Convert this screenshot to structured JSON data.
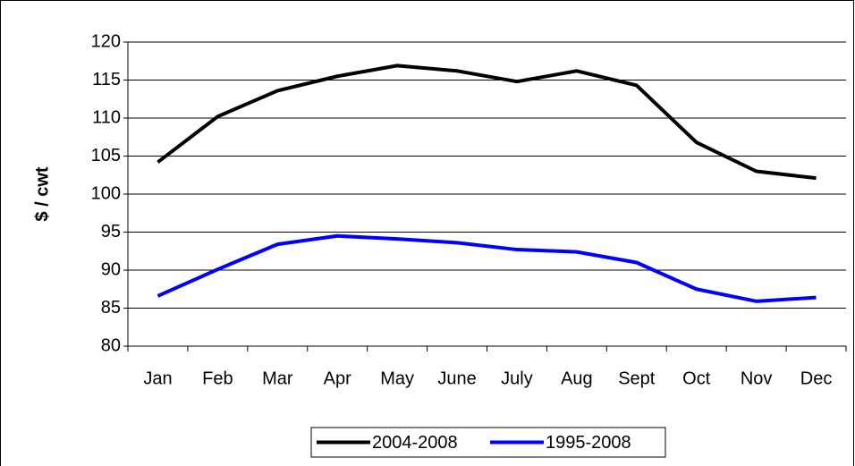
{
  "chart_data": {
    "type": "line",
    "y_label": "$ / cwt",
    "categories": [
      "Jan",
      "Feb",
      "Mar",
      "Apr",
      "May",
      "June",
      "July",
      "Aug",
      "Sept",
      "Oct",
      "Nov",
      "Dec"
    ],
    "series": [
      {
        "name": "2004-2008",
        "color": "#000000",
        "values": [
          104.2,
          110.2,
          113.6,
          115.5,
          116.9,
          116.2,
          114.8,
          116.2,
          114.3,
          106.8,
          103.0,
          102.1
        ]
      },
      {
        "name": "1995-2008",
        "color": "#0000ff",
        "values": [
          86.6,
          90.1,
          93.4,
          94.5,
          94.1,
          93.6,
          92.7,
          92.4,
          91.0,
          87.5,
          85.9,
          86.4
        ]
      }
    ],
    "ylim": [
      80,
      120
    ],
    "yticks": [
      80,
      85,
      90,
      95,
      100,
      105,
      110,
      115,
      120
    ],
    "grid": true,
    "legend": "bottom"
  }
}
